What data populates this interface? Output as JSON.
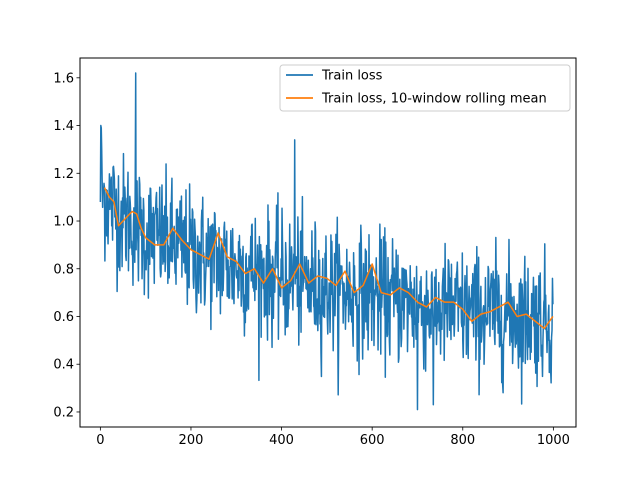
{
  "chart_data": {
    "type": "line",
    "title": "",
    "xlabel": "",
    "ylabel": "",
    "xlim": [
      -44.95,
      1049.95
    ],
    "ylim": [
      0.137,
      1.683
    ],
    "xticks": [
      0,
      200,
      400,
      600,
      800,
      1000
    ],
    "yticks": [
      0.2,
      0.4,
      0.6,
      0.8,
      1.0,
      1.2,
      1.4,
      1.6
    ],
    "xtick_labels": [
      "0",
      "200",
      "400",
      "600",
      "800",
      "1000"
    ],
    "ytick_labels": [
      "0.2",
      "0.4",
      "0.6",
      "0.8",
      "1.0",
      "1.2",
      "1.4",
      "1.6"
    ],
    "grid": false,
    "legend_position": "upper right",
    "series": [
      {
        "name": "Train loss",
        "color": "#1f77b4",
        "kind": "noisy",
        "n_points": 1000,
        "x_range": [
          0,
          999
        ],
        "trend": [
          [
            0,
            1.12
          ],
          [
            50,
            1.02
          ],
          [
            100,
            0.95
          ],
          [
            200,
            0.87
          ],
          [
            300,
            0.81
          ],
          [
            400,
            0.76
          ],
          [
            500,
            0.72
          ],
          [
            600,
            0.69
          ],
          [
            700,
            0.65
          ],
          [
            800,
            0.62
          ],
          [
            900,
            0.61
          ],
          [
            1000,
            0.59
          ]
        ],
        "typical_spread": 0.13,
        "spikes": [
          [
            1,
            1.4
          ],
          [
            2,
            1.39
          ],
          [
            78,
            1.62
          ],
          [
            429,
            1.34
          ],
          [
            700,
            0.21
          ],
          [
            735,
            0.23
          ]
        ]
      },
      {
        "name": "Train loss, 10-window rolling mean",
        "color": "#ff7f0e",
        "kind": "smooth",
        "x": [
          9,
          20,
          30,
          40,
          50,
          60,
          70,
          80,
          90,
          100,
          120,
          140,
          160,
          180,
          200,
          220,
          240,
          260,
          280,
          300,
          320,
          340,
          360,
          380,
          400,
          420,
          440,
          460,
          480,
          500,
          520,
          540,
          560,
          580,
          600,
          620,
          640,
          660,
          680,
          700,
          720,
          740,
          760,
          780,
          800,
          820,
          840,
          860,
          880,
          900,
          920,
          940,
          960,
          980,
          999
        ],
        "values": [
          1.14,
          1.1,
          1.08,
          0.98,
          1.0,
          1.02,
          1.04,
          1.03,
          0.97,
          0.93,
          0.9,
          0.9,
          0.97,
          0.92,
          0.88,
          0.86,
          0.84,
          0.95,
          0.85,
          0.83,
          0.78,
          0.8,
          0.74,
          0.8,
          0.72,
          0.75,
          0.82,
          0.74,
          0.77,
          0.76,
          0.73,
          0.79,
          0.7,
          0.73,
          0.82,
          0.7,
          0.69,
          0.72,
          0.7,
          0.66,
          0.64,
          0.68,
          0.66,
          0.66,
          0.63,
          0.58,
          0.61,
          0.62,
          0.64,
          0.66,
          0.6,
          0.61,
          0.58,
          0.55,
          0.6
        ]
      }
    ]
  }
}
